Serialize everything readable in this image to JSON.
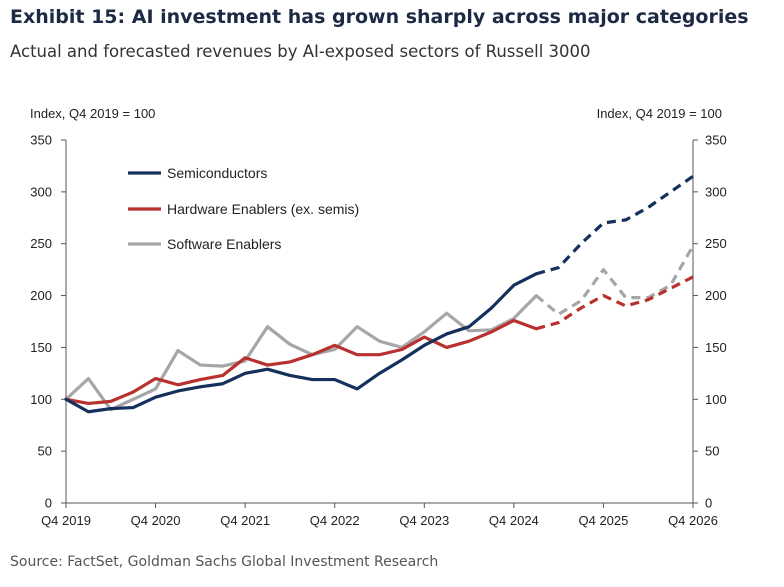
{
  "header": {
    "title": "Exhibit 15: AI investment has grown sharply across major categories",
    "subtitle": "Actual and forecasted revenues by AI-exposed sectors of Russell 3000"
  },
  "footer": {
    "source": "Source: FactSet, Goldman Sachs Global Investment Research"
  },
  "colors": {
    "semiconductors": "#14305c",
    "hardware": "#b8312f",
    "software": "#a6a6a6"
  },
  "chart_data": {
    "type": "line",
    "title": "Exhibit 15: AI investment has grown sharply across major categories",
    "subtitle": "Actual and forecasted revenues by AI-exposed sectors of Russell 3000",
    "ylabel_left": "Index, Q4 2019 = 100",
    "ylabel_right": "Index, Q4 2019 = 100",
    "ylim": [
      0,
      350
    ],
    "yticks": [
      0,
      50,
      100,
      150,
      200,
      250,
      300,
      350
    ],
    "x_labels": [
      "Q4 2019",
      "Q4 2020",
      "Q4 2021",
      "Q4 2022",
      "Q4 2023",
      "Q4 2024",
      "Q4 2025",
      "Q4 2026"
    ],
    "x_periods": [
      "Q4 2019",
      "Q1 2020",
      "Q2 2020",
      "Q3 2020",
      "Q4 2020",
      "Q1 2021",
      "Q2 2021",
      "Q3 2021",
      "Q4 2021",
      "Q1 2022",
      "Q2 2022",
      "Q3 2022",
      "Q4 2022",
      "Q1 2023",
      "Q2 2023",
      "Q3 2023",
      "Q4 2023",
      "Q1 2024",
      "Q2 2024",
      "Q3 2024",
      "Q4 2024",
      "Q1 2025",
      "Q2 2025",
      "Q3 2025",
      "Q4 2025",
      "Q1 2026",
      "Q2 2026",
      "Q3 2026",
      "Q4 2026"
    ],
    "forecast_start": "Q2 2025",
    "legend_position": "top-left",
    "grid": false,
    "series": [
      {
        "name": "Semiconductors",
        "color": "#14305c",
        "values": [
          100,
          88,
          91,
          92,
          102,
          108,
          112,
          115,
          125,
          129,
          123,
          119,
          119,
          110,
          125,
          138,
          152,
          163,
          170,
          188,
          210,
          221,
          227,
          250,
          270,
          273,
          285,
          300,
          315
        ]
      },
      {
        "name": "Hardware Enablers (ex. semis)",
        "color": "#b8312f",
        "values": [
          100,
          96,
          98,
          107,
          120,
          114,
          119,
          123,
          140,
          133,
          136,
          143,
          152,
          143,
          143,
          148,
          160,
          150,
          156,
          165,
          176,
          168,
          174,
          188,
          200,
          190,
          196,
          207,
          218
        ]
      },
      {
        "name": "Software Enablers",
        "color": "#a6a6a6",
        "values": [
          100,
          120,
          90,
          100,
          110,
          147,
          133,
          132,
          137,
          170,
          153,
          143,
          148,
          170,
          156,
          150,
          165,
          183,
          166,
          167,
          178,
          200,
          182,
          195,
          225,
          198,
          198,
          210,
          248
        ]
      }
    ]
  }
}
